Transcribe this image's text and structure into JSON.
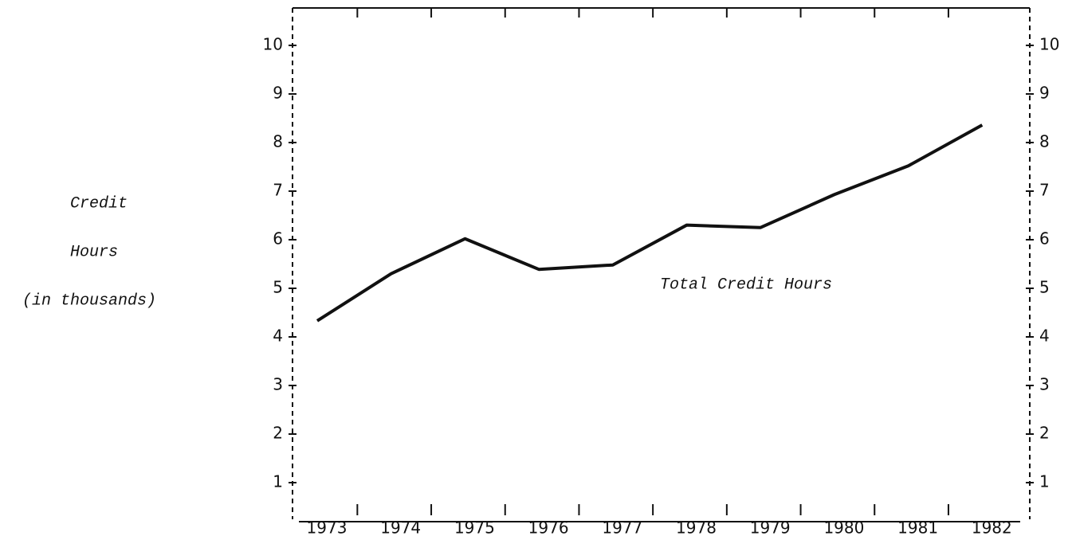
{
  "chart_data": {
    "type": "line",
    "y_label_lines": [
      "Credit",
      "Hours",
      "(in thousands)"
    ],
    "annotation": "Total Credit Hours",
    "categories": [
      "1973",
      "1974",
      "1975",
      "1976",
      "1977",
      "1978",
      "1979",
      "1980",
      "1981",
      "1982"
    ],
    "series": [
      {
        "name": "Total Credit Hours",
        "color": "#111111",
        "values": [
          4.33,
          5.3,
          6.02,
          5.39,
          5.48,
          6.3,
          6.25,
          6.93,
          7.52,
          8.36
        ]
      }
    ],
    "ylim": [
      0,
      10.77
    ],
    "yticks": [
      1,
      2,
      3,
      4,
      5,
      6,
      7,
      8,
      9,
      10
    ],
    "grid": false
  }
}
